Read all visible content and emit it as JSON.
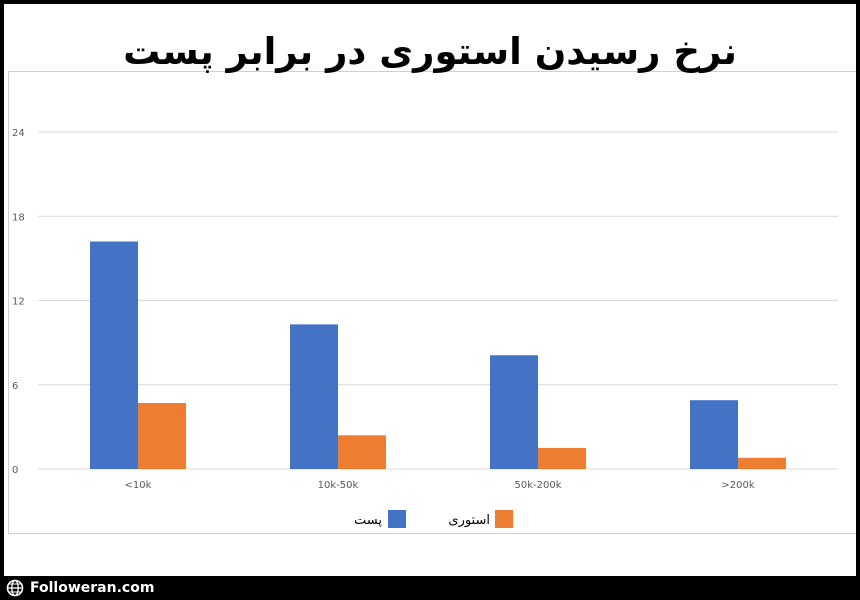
{
  "colors": {
    "series_post": "#4472c4",
    "series_story": "#ed7d31",
    "grid": "#d9d9d9",
    "axis_text": "#595959",
    "background": "#ffffff"
  },
  "footer": {
    "brand": "Followeran.com",
    "icon": "globe-icon"
  },
  "chart_data": {
    "type": "bar",
    "title": "نرخ رسیدن استوری در برابر پست",
    "categories": [
      "<10k",
      "10k-50k",
      "50k-200k",
      ">200k"
    ],
    "yticks": [
      0,
      6,
      12,
      18,
      24
    ],
    "ylim": [
      0,
      24
    ],
    "grid": true,
    "legend_placement": "bottom-center",
    "series": [
      {
        "name": "پست",
        "color": "#4472c4",
        "values": [
          16.2,
          10.3,
          8.1,
          4.9
        ]
      },
      {
        "name": "استوری",
        "color": "#ed7d31",
        "values": [
          4.7,
          2.4,
          1.5,
          0.8
        ]
      }
    ]
  }
}
